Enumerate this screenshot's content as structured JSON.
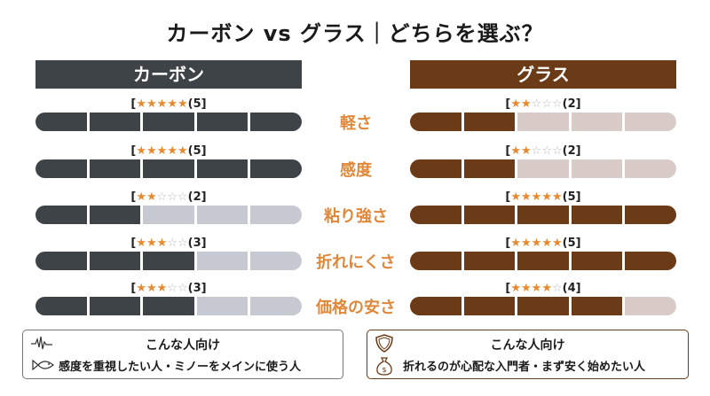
{
  "title": "カーボン vs グラス｜どちらを選ぶ？",
  "colors": {
    "carbon": "#3d4347",
    "carbon_empty": "#c6c8d2",
    "glass": "#6b3a16",
    "glass_empty": "#d8cbc8",
    "category": "#e0883a",
    "star": "#e8892e"
  },
  "chart_data": {
    "type": "bar",
    "categories": [
      "軽さ",
      "感度",
      "粘り強さ",
      "折れにくさ",
      "価格の安さ"
    ],
    "ylim": [
      0,
      5
    ],
    "series": [
      {
        "name": "カーボン",
        "values": [
          5,
          5,
          2,
          3,
          3
        ],
        "labels": [
          "[★★★★★(5]",
          "[★★★★★(5]",
          "[★★☆☆☆(2]",
          "[★★★☆☆(3]",
          "[★★★☆☆(3]"
        ]
      },
      {
        "name": "グラス",
        "values": [
          2,
          2,
          5,
          5,
          4
        ],
        "labels": [
          "[★★☆☆☆(2]",
          "[★★☆☆☆(2]",
          "[★★★★★(5]",
          "[★★★★★(5]",
          "[★★★★☆(4]"
        ]
      }
    ]
  },
  "boxes": {
    "left": {
      "heading": "こんな人向け",
      "text": "感度を重視したい人・ミノーをメインに使う人",
      "icons": [
        "pulse-icon",
        "fish-icon"
      ]
    },
    "right": {
      "heading": "こんな人向け",
      "text": "折れるのが心配な入門者・まず安く始めたい人",
      "icons": [
        "shield-icon",
        "money-bag-icon"
      ]
    }
  }
}
